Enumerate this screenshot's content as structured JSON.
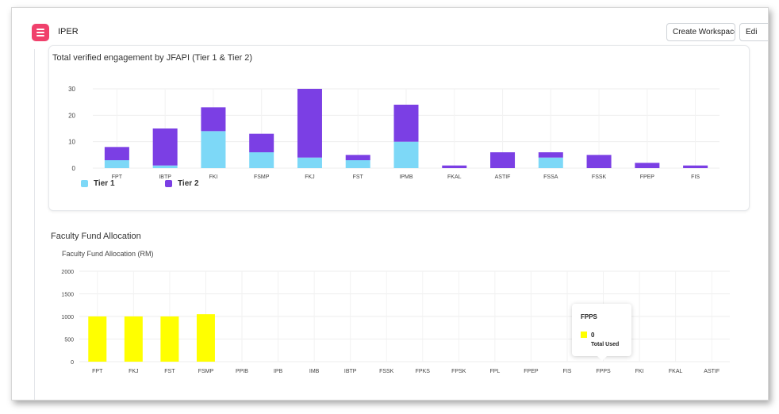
{
  "header": {
    "app_title": "IPER",
    "create_workspace_label": "Create Workspace",
    "edit_label": "Edi",
    "menu_icon": "hamburger-menu-icon",
    "accent_color": "#f0416c"
  },
  "chart1": {
    "title": "Total verified engagement by JFAPI (Tier 1 & Tier 2)",
    "legend": [
      {
        "name": "Tier 1",
        "color": "#7dd8f7"
      },
      {
        "name": "Tier 2",
        "color": "#7b3fe4"
      }
    ]
  },
  "chart2": {
    "section_title": "Faculty Fund Allocation",
    "title": "Faculty Fund Allocation (RM)",
    "bar_color": "#ffff00"
  },
  "tooltip": {
    "category": "FPPS",
    "value": "0",
    "label": "Total Used"
  },
  "chart_data": [
    {
      "type": "bar",
      "stacked": true,
      "title": "Total verified engagement by JFAPI (Tier 1 & Tier 2)",
      "categories": [
        "FPT",
        "IBTP",
        "FKI",
        "FSMP",
        "FKJ",
        "FST",
        "IPMB",
        "FKAL",
        "ASTIF",
        "FSSA",
        "FSSK",
        "FPEP",
        "FIS"
      ],
      "series": [
        {
          "name": "Tier 1",
          "values": [
            3,
            1,
            14,
            6,
            4,
            3,
            10,
            0,
            0,
            4,
            0,
            0,
            0
          ]
        },
        {
          "name": "Tier 2",
          "values": [
            5,
            14,
            9,
            7,
            26,
            2,
            14,
            1,
            6,
            2,
            5,
            2,
            1
          ]
        }
      ],
      "yticks": [
        0,
        10,
        20,
        30
      ],
      "ylim": [
        0,
        30
      ],
      "grid": true,
      "legend": "bottom-left"
    },
    {
      "type": "bar",
      "title": "Faculty Fund Allocation (RM)",
      "categories": [
        "FPT",
        "FKJ",
        "FST",
        "FSMP",
        "PPIB",
        "IPB",
        "IMB",
        "IBTP",
        "FSSK",
        "FPKS",
        "FPSK",
        "FPL",
        "FPEP",
        "FIS",
        "FPPS",
        "FKI",
        "FKAL",
        "ASTIF"
      ],
      "series": [
        {
          "name": "Total Used",
          "values": [
            1000,
            1000,
            1000,
            1050,
            0,
            0,
            0,
            0,
            0,
            0,
            0,
            0,
            0,
            0,
            0,
            0,
            0,
            0
          ]
        }
      ],
      "yticks": [
        0,
        500,
        1000,
        1500,
        2000
      ],
      "ylim": [
        0,
        2000
      ],
      "grid": true
    }
  ]
}
